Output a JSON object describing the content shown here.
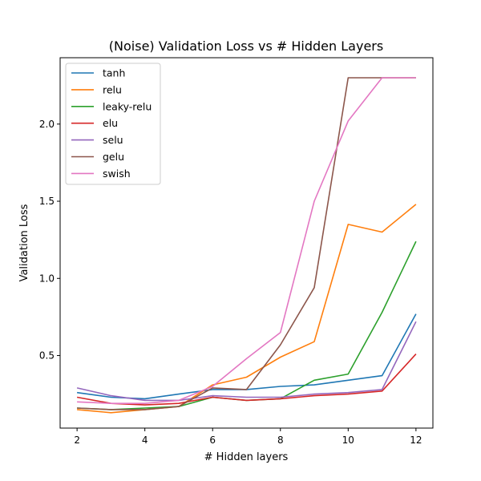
{
  "chart_data": {
    "type": "line",
    "title": "(Noise) Validation Loss vs # Hidden Layers",
    "xlabel": "# Hidden layers",
    "ylabel": "Validation Loss",
    "x": [
      2,
      3,
      4,
      5,
      6,
      7,
      8,
      9,
      10,
      11,
      12
    ],
    "xlim": [
      1.5,
      12.5
    ],
    "ylim": [
      0.03,
      2.43
    ],
    "xticks": [
      2,
      4,
      6,
      8,
      10,
      12
    ],
    "xtick_labels": [
      "2",
      "4",
      "6",
      "8",
      "10",
      "12"
    ],
    "yticks": [
      0.5,
      1.0,
      1.5,
      2.0
    ],
    "ytick_labels": [
      "0.5",
      "1.0",
      "1.5",
      "2.0"
    ],
    "grid": false,
    "legend_position": "top-left",
    "series": [
      {
        "name": "tanh",
        "color": "#1f77b4",
        "values": [
          0.26,
          0.23,
          0.22,
          0.25,
          0.28,
          0.28,
          0.3,
          0.31,
          0.34,
          0.37,
          0.77
        ]
      },
      {
        "name": "relu",
        "color": "#ff7f0e",
        "values": [
          0.15,
          0.13,
          0.15,
          0.17,
          0.31,
          0.36,
          0.49,
          0.59,
          1.35,
          1.3,
          1.48
        ]
      },
      {
        "name": "leaky-relu",
        "color": "#2ca02c",
        "values": [
          0.16,
          0.15,
          0.16,
          0.17,
          0.23,
          0.21,
          0.22,
          0.34,
          0.38,
          0.78,
          1.24
        ]
      },
      {
        "name": "elu",
        "color": "#d62728",
        "values": [
          0.23,
          0.19,
          0.18,
          0.19,
          0.23,
          0.21,
          0.22,
          0.24,
          0.25,
          0.27,
          0.51
        ]
      },
      {
        "name": "selu",
        "color": "#9467bd",
        "values": [
          0.29,
          0.24,
          0.21,
          0.21,
          0.24,
          0.23,
          0.23,
          0.25,
          0.26,
          0.28,
          0.72
        ]
      },
      {
        "name": "gelu",
        "color": "#8c564b",
        "values": [
          0.16,
          0.15,
          0.15,
          0.17,
          0.29,
          0.28,
          0.57,
          0.94,
          2.3,
          2.3,
          2.3
        ]
      },
      {
        "name": "swish",
        "color": "#e377c2",
        "values": [
          0.2,
          0.19,
          0.19,
          0.21,
          0.3,
          0.48,
          0.65,
          1.5,
          2.02,
          2.3,
          2.3
        ]
      }
    ]
  }
}
